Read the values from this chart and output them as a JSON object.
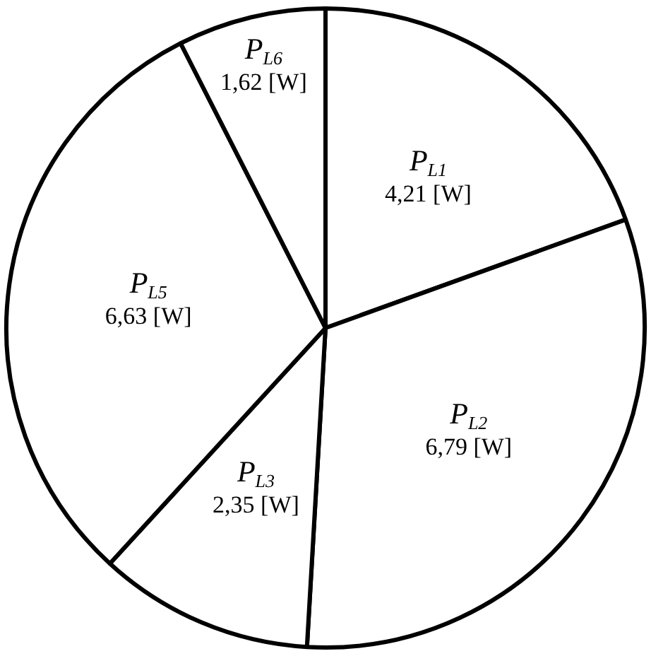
{
  "chart_data": {
    "type": "pie",
    "categories": [
      "P$_{L1}$",
      "P$_{L2}$",
      "P$_{L3}$",
      "P$_{L5}$",
      "P$_{L6}$"
    ],
    "values": [
      4.21,
      6.79,
      2.35,
      6.63,
      1.62
    ],
    "colors": [
      "#ffffff",
      "#ffffff",
      "#ffffff",
      "#ffffff",
      "#ffffff"
    ],
    "value_labels": [
      "4,21 [W]",
      "6,79 [W]",
      "2,35 [W]",
      "6,63 [W]",
      "1,62 [W]"
    ]
  }
}
